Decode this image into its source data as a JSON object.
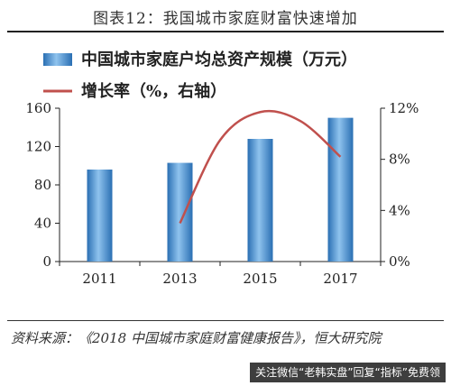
{
  "header": {
    "title": "图表12：我国城市家庭财富快速增加"
  },
  "chart_data": {
    "type": "bar",
    "categories": [
      "2011",
      "2013",
      "2015",
      "2017"
    ],
    "series": [
      {
        "name": "中国城市家庭户均总资产规模（万元）",
        "type": "bar",
        "axis": "left",
        "values": [
          96,
          103,
          128,
          150
        ],
        "color": "#3f86c8"
      },
      {
        "name": "增长率（%，右轴）",
        "type": "line",
        "axis": "right",
        "x": [
          "2013",
          "2014",
          "2015",
          "2016",
          "2017"
        ],
        "values": [
          3.0,
          9.5,
          11.7,
          11.0,
          8.2
        ],
        "color": "#c0504d"
      }
    ],
    "ylim_left": [
      0,
      160
    ],
    "yticks_left": [
      "0",
      "40",
      "80",
      "120",
      "160"
    ],
    "ylim_right": [
      0,
      12
    ],
    "yticks_right": [
      "0%",
      "4%",
      "8%",
      "12%"
    ],
    "xticks": [
      "2011",
      "2013",
      "2015",
      "2017"
    ],
    "legend_position": "top-left",
    "grid": false
  },
  "footer": {
    "source": "资料来源：《2018 中国城市家庭财富健康报告》，恒大研究院",
    "watermark": "关注微信“老韩实盘”回复“指标”免费领"
  }
}
